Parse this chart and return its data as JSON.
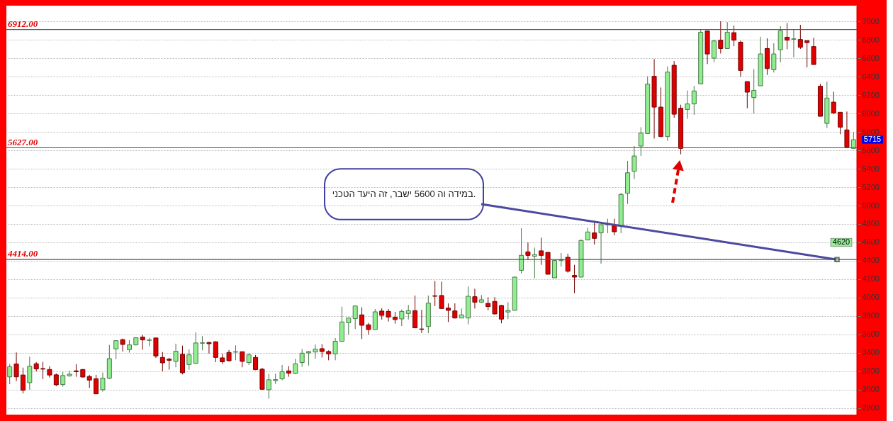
{
  "chart_data": {
    "type": "candlestick",
    "categories": [
      null,
      null,
      null,
      null,
      null,
      null,
      null,
      null,
      null,
      null,
      null,
      null,
      null,
      null,
      null,
      null,
      null,
      null,
      null,
      null,
      null,
      null,
      null,
      null,
      null,
      null,
      null,
      null,
      null,
      null,
      null,
      null,
      null,
      null,
      null,
      null,
      null,
      null,
      null,
      null,
      null,
      null,
      null,
      null,
      null,
      null,
      null,
      null,
      null,
      null,
      null,
      null,
      null,
      null,
      null,
      null,
      null,
      null,
      null,
      null,
      null,
      null,
      null,
      null,
      null,
      null,
      null,
      null,
      null,
      null,
      null,
      null,
      null,
      null,
      null,
      null,
      null,
      null,
      null,
      null,
      null,
      null,
      null,
      null,
      null,
      null,
      null,
      null,
      null,
      null,
      null,
      null,
      null,
      null,
      null,
      null,
      null,
      null,
      null,
      null,
      null,
      null,
      null,
      null,
      null,
      null,
      null,
      null,
      null,
      null,
      null,
      null,
      null,
      null,
      null,
      null,
      null,
      null,
      null,
      null,
      null,
      null,
      null,
      null,
      null,
      null,
      null,
      null
    ],
    "ohlc": [
      [
        3140,
        3280,
        3060,
        3250
      ],
      [
        3280,
        3405,
        3095,
        3140
      ],
      [
        3160,
        3240,
        2960,
        2995
      ],
      [
        3077,
        3359,
        3000,
        3256
      ],
      [
        3282,
        3300,
        3200,
        3226
      ],
      [
        3230,
        3303,
        3115,
        3224
      ],
      [
        3220,
        3256,
        3133,
        3160
      ],
      [
        3162,
        3177,
        3039,
        3054
      ],
      [
        3056,
        3192,
        3033,
        3154
      ],
      [
        3151,
        3205,
        3141,
        3169
      ],
      [
        3205,
        3277,
        3141,
        3197
      ],
      [
        3220,
        3223,
        3133,
        3138
      ],
      [
        3144,
        3162,
        3020,
        3105
      ],
      [
        3120,
        3162,
        2954,
        2956
      ],
      [
        3000,
        3187,
        2980,
        3126
      ],
      [
        3126,
        3487,
        3115,
        3338
      ],
      [
        3444,
        3533,
        3333,
        3533
      ],
      [
        3544,
        3556,
        3415,
        3492
      ],
      [
        3436,
        3538,
        3403,
        3487
      ],
      [
        3487,
        3572,
        3482,
        3564
      ],
      [
        3572,
        3597,
        3436,
        3541
      ],
      [
        3536,
        3564,
        3474,
        3541
      ],
      [
        3562,
        3564,
        3346,
        3367
      ],
      [
        3351,
        3410,
        3200,
        3292
      ],
      [
        3333,
        3346,
        3218,
        3320
      ],
      [
        3308,
        3500,
        3244,
        3418
      ],
      [
        3385,
        3479,
        3167,
        3185
      ],
      [
        3274,
        3438,
        3218,
        3379
      ],
      [
        3287,
        3623,
        3287,
        3508
      ],
      [
        3505,
        3582,
        3428,
        3510
      ],
      [
        3513,
        3521,
        3392,
        3500
      ],
      [
        3521,
        3526,
        3300,
        3351
      ],
      [
        3346,
        3390,
        3282,
        3303
      ],
      [
        3405,
        3431,
        3308,
        3315
      ],
      [
        3408,
        3482,
        3320,
        3413
      ],
      [
        3413,
        3415,
        3244,
        3308
      ],
      [
        3295,
        3397,
        3269,
        3379
      ],
      [
        3351,
        3377,
        3213,
        3218
      ],
      [
        3223,
        3238,
        3000,
        3005
      ],
      [
        3000,
        3172,
        2903,
        3108
      ],
      [
        3100,
        3174,
        3064,
        3110
      ],
      [
        3118,
        3269,
        3103,
        3197
      ],
      [
        3205,
        3256,
        3141,
        3180
      ],
      [
        3177,
        3338,
        3172,
        3282
      ],
      [
        3295,
        3441,
        3249,
        3397
      ],
      [
        3400,
        3423,
        3262,
        3415
      ],
      [
        3410,
        3492,
        3338,
        3441
      ],
      [
        3446,
        3495,
        3351,
        3415
      ],
      [
        3415,
        3428,
        3320,
        3390
      ],
      [
        3390,
        3562,
        3320,
        3526
      ],
      [
        3526,
        3903,
        3526,
        3736
      ],
      [
        3728,
        3782,
        3600,
        3779
      ],
      [
        3772,
        3910,
        3659,
        3910
      ],
      [
        3813,
        3895,
        3551,
        3700
      ],
      [
        3705,
        3726,
        3600,
        3654
      ],
      [
        3654,
        3877,
        3654,
        3846
      ],
      [
        3854,
        3885,
        3762,
        3808
      ],
      [
        3851,
        3877,
        3741,
        3790
      ],
      [
        3787,
        3844,
        3718,
        3762
      ],
      [
        3769,
        3872,
        3692,
        3851
      ],
      [
        3828,
        3921,
        3762,
        3859
      ],
      [
        3859,
        4023,
        3672,
        3672
      ],
      [
        3660,
        3867,
        3615,
        3656
      ],
      [
        3687,
        4023,
        3615,
        3941
      ],
      [
        4020,
        4182,
        3908,
        4015
      ],
      [
        4023,
        4172,
        3882,
        3882
      ],
      [
        3887,
        3938,
        3736,
        3862
      ],
      [
        3856,
        3938,
        3774,
        3779
      ],
      [
        3779,
        3882,
        3779,
        3813
      ],
      [
        3779,
        4121,
        3710,
        4015
      ],
      [
        4010,
        4097,
        3882,
        3951
      ],
      [
        3951,
        4028,
        3941,
        3977
      ],
      [
        3938,
        4005,
        3862,
        3903
      ],
      [
        3959,
        4005,
        3818,
        3823
      ],
      [
        3915,
        3920,
        3721,
        3767
      ],
      [
        3844,
        3951,
        3767,
        3862
      ],
      [
        3862,
        4228,
        3862,
        4223
      ],
      [
        4297,
        4754,
        4262,
        4459
      ],
      [
        4497,
        4600,
        4408,
        4459
      ],
      [
        4449,
        4544,
        4210,
        4467
      ],
      [
        4508,
        4651,
        4356,
        4459
      ],
      [
        4492,
        4492,
        4254,
        4254
      ],
      [
        4215,
        4403,
        4215,
        4403
      ],
      [
        4405,
        4485,
        4338,
        4410
      ],
      [
        4438,
        4477,
        4272,
        4287
      ],
      [
        4241,
        4356,
        4049,
        4223
      ],
      [
        4223,
        4631,
        4223,
        4621
      ],
      [
        4626,
        4759,
        4626,
        4713
      ],
      [
        4703,
        4836,
        4577,
        4644
      ],
      [
        4703,
        4792,
        4369,
        4792
      ],
      [
        4790,
        4856,
        4700,
        4795
      ],
      [
        4792,
        4856,
        4677,
        4715
      ],
      [
        4780,
        5138,
        4700,
        5121
      ],
      [
        5133,
        5485,
        5018,
        5356
      ],
      [
        5372,
        5646,
        5287,
        5538
      ],
      [
        5646,
        5851,
        5538,
        5787
      ],
      [
        5782,
        6403,
        5782,
        6318
      ],
      [
        6403,
        6590,
        5728,
        6069
      ],
      [
        6069,
        6282,
        5744,
        5749
      ],
      [
        5749,
        6510,
        5703,
        6449
      ],
      [
        6523,
        6569,
        5954,
        5992
      ],
      [
        6056,
        6095,
        5556,
        5621
      ],
      [
        6044,
        6249,
        5941,
        6103
      ],
      [
        6103,
        6300,
        5985,
        6244
      ],
      [
        6321,
        6908,
        6321,
        6882
      ],
      [
        6895,
        6895,
        6536,
        6646
      ],
      [
        6600,
        6800,
        6556,
        6787
      ],
      [
        6795,
        7000,
        6651,
        6705
      ],
      [
        6705,
        6992,
        6705,
        6882
      ],
      [
        6877,
        6954,
        6731,
        6795
      ],
      [
        6774,
        6790,
        6397,
        6467
      ],
      [
        6346,
        6346,
        6056,
        6231
      ],
      [
        6172,
        6482,
        6000,
        6251
      ],
      [
        6300,
        6833,
        6300,
        6646
      ],
      [
        6705,
        6815,
        6418,
        6487
      ],
      [
        6474,
        6762,
        6444,
        6646
      ],
      [
        6692,
        6949,
        6556,
        6897
      ],
      [
        6828,
        6982,
        6697,
        6795
      ],
      [
        6805,
        6910,
        6610,
        6810
      ],
      [
        6803,
        6962,
        6700,
        6718
      ],
      [
        6790,
        6790,
        6500,
        6769
      ],
      [
        6726,
        6821,
        6531,
        6531
      ],
      [
        6295,
        6321,
        5969,
        5969
      ],
      [
        5892,
        6346,
        5841,
        6167
      ],
      [
        6123,
        6236,
        5995,
        6005
      ],
      [
        6013,
        6013,
        5774,
        5851
      ],
      [
        5821,
        6021,
        5636,
        5636
      ],
      [
        5621,
        5800,
        5621,
        5715
      ]
    ],
    "colors": [
      "#90ee90",
      "#e00000",
      "#e00000",
      "#90ee90",
      "#e00000",
      "#e00000",
      "#e00000",
      "#e00000",
      "#90ee90",
      "#90ee90",
      "#e00000",
      "#e00000",
      "#e00000",
      "#e00000",
      "#90ee90",
      "#90ee90",
      "#90ee90",
      "#e00000",
      "#90ee90",
      "#90ee90",
      "#e00000",
      "#90ee90",
      "#e00000",
      "#e00000",
      "#e00000",
      "#90ee90",
      "#e00000",
      "#90ee90",
      "#90ee90",
      "#90ee90",
      "#e00000",
      "#e00000",
      "#e00000",
      "#e00000",
      "#90ee90",
      "#e00000",
      "#90ee90",
      "#e00000",
      "#e00000",
      "#90ee90",
      "#90ee90",
      "#90ee90",
      "#e00000",
      "#90ee90",
      "#90ee90",
      "#90ee90",
      "#90ee90",
      "#e00000",
      "#e00000",
      "#90ee90",
      "#90ee90",
      "#90ee90",
      "#90ee90",
      "#e00000",
      "#e00000",
      "#90ee90",
      "#e00000",
      "#e00000",
      "#e00000",
      "#90ee90",
      "#90ee90",
      "#e00000",
      "#e00000",
      "#90ee90",
      "#e00000",
      "#e00000",
      "#e00000",
      "#e00000",
      "#90ee90",
      "#90ee90",
      "#e00000",
      "#90ee90",
      "#e00000",
      "#e00000",
      "#e00000",
      "#90ee90",
      "#90ee90",
      "#90ee90",
      "#e00000",
      "#90ee90",
      "#e00000",
      "#e00000",
      "#90ee90",
      "#90ee90",
      "#e00000",
      "#e00000",
      "#90ee90",
      "#90ee90",
      "#e00000",
      "#90ee90",
      "#90ee90",
      "#e00000",
      "#90ee90",
      "#90ee90",
      "#90ee90",
      "#90ee90",
      "#90ee90",
      "#e00000",
      "#e00000",
      "#90ee90",
      "#e00000",
      "#e00000",
      "#90ee90",
      "#90ee90",
      "#90ee90",
      "#e00000",
      "#90ee90",
      "#e00000",
      "#90ee90",
      "#e00000",
      "#e00000",
      "#e00000",
      "#90ee90",
      "#90ee90",
      "#e00000",
      "#90ee90",
      "#90ee90",
      "#e00000",
      "#90ee90",
      "#e00000",
      "#e00000",
      "#e00000",
      "#e00000",
      "#90ee90",
      "#e00000",
      "#e00000",
      "#e00000",
      "#90ee90"
    ],
    "ylim": [
      2730,
      7170
    ],
    "yticks": [
      2800,
      3000,
      3200,
      3400,
      3600,
      3800,
      4000,
      4200,
      4400,
      4600,
      4800,
      5000,
      5200,
      5400,
      5600,
      5800,
      6000,
      6200,
      6400,
      6600,
      6800,
      7000
    ],
    "grid": "y",
    "tick_labels": "y",
    "ref_lines": [
      {
        "axis": "y",
        "value": 6912,
        "label": "6912.00",
        "color": "#555555"
      },
      {
        "axis": "y",
        "value": 5627,
        "label": "5627.00",
        "color": "#555555"
      },
      {
        "axis": "y",
        "value": 4414,
        "label": "4414.00",
        "color": "#555555"
      }
    ],
    "annotations": [
      "במידה וה 5600 ישבר, זה  היעד הטכני.",
      "5715",
      "4620"
    ]
  }
}
